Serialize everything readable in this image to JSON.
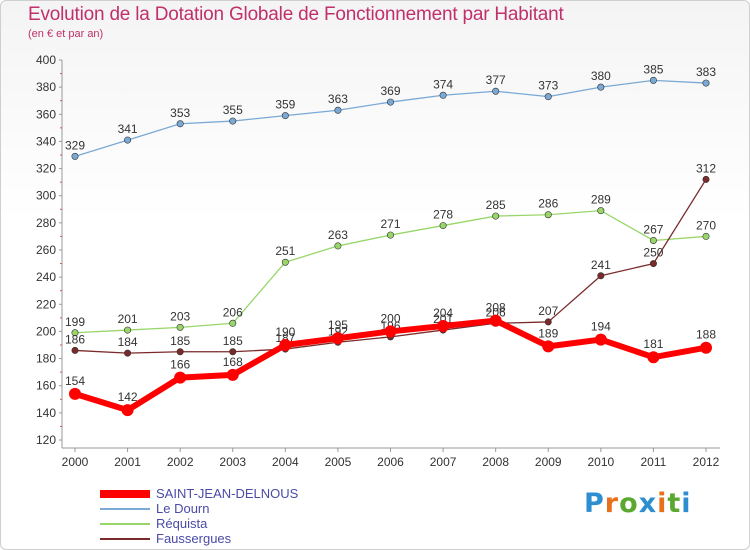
{
  "title": "Evolution de la Dotation Globale de Fonctionnement par Habitant",
  "subtitle": "(en € et par an)",
  "logo": {
    "text": "Proxiti",
    "letters": [
      "P",
      "r",
      "o",
      "x",
      "i",
      "t",
      "i"
    ],
    "colors": [
      "#2d8fd0",
      "#e8701a",
      "#5aa830",
      "#2d8fd0",
      "#e8701a",
      "#5aa830",
      "#2d8fd0"
    ]
  },
  "chart_data": {
    "type": "line",
    "title": "Evolution de la Dotation Globale de Fonctionnement par Habitant",
    "xlabel": "",
    "ylabel": "",
    "ylim": [
      120,
      400
    ],
    "ytick_step": 20,
    "categories": [
      "2000",
      "2001",
      "2002",
      "2003",
      "2004",
      "2005",
      "2006",
      "2007",
      "2008",
      "2009",
      "2010",
      "2011",
      "2012"
    ],
    "series": [
      {
        "name": "SAINT-JEAN-DELNOUS",
        "color": "#ff0000",
        "width": 6,
        "values": [
          154,
          142,
          166,
          168,
          190,
          195,
          200,
          204,
          208,
          189,
          194,
          181,
          188
        ]
      },
      {
        "name": "Le Dourn",
        "color": "#7aa9d6",
        "width": 1.3,
        "values": [
          329,
          341,
          353,
          355,
          359,
          363,
          369,
          374,
          377,
          373,
          380,
          385,
          383
        ]
      },
      {
        "name": "Réquista",
        "color": "#98d66a",
        "width": 1.3,
        "values": [
          199,
          201,
          203,
          206,
          251,
          263,
          271,
          278,
          285,
          286,
          289,
          267,
          270
        ]
      },
      {
        "name": "Faussergues",
        "color": "#7a2a2a",
        "width": 1.3,
        "values": [
          186,
          184,
          185,
          185,
          187,
          192,
          196,
          201,
          206,
          207,
          241,
          250,
          312
        ]
      }
    ],
    "legend_position": "bottom-left",
    "grid": false
  }
}
